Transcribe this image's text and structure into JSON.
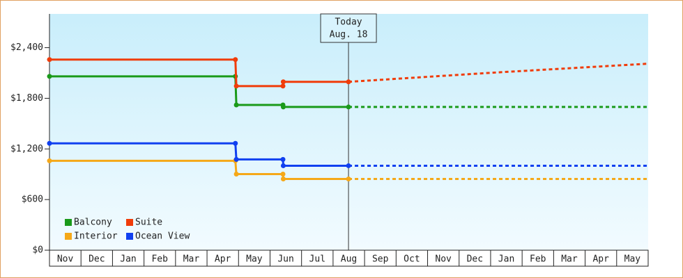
{
  "chart_data": {
    "type": "line",
    "categories": [
      "Nov",
      "Dec",
      "Jan",
      "Feb",
      "Mar",
      "Apr",
      "May",
      "Jun",
      "Jul",
      "Aug",
      "Sep",
      "Oct",
      "Nov",
      "Dec",
      "Jan",
      "Feb",
      "Mar",
      "Apr",
      "May"
    ],
    "x": [
      0,
      5.9,
      5.93,
      7.41,
      7.42,
      9.49
    ],
    "forecast_x": [
      9.49,
      14,
      19
    ],
    "xlim": [
      0,
      19
    ],
    "ylim": [
      0,
      2800
    ],
    "yticks": [
      {
        "value": 0,
        "label": "$0"
      },
      {
        "value": 600,
        "label": "$600"
      },
      {
        "value": 1200,
        "label": "$1,200"
      },
      {
        "value": 1800,
        "label": "$1,800"
      },
      {
        "value": 2400,
        "label": "$2,400"
      }
    ],
    "series": [
      {
        "name": "Balcony",
        "color": "#1a9a1a",
        "values": [
          2060,
          2060,
          1721,
          1721,
          1697,
          1697
        ],
        "forecast": [
          1697,
          1697,
          1697
        ]
      },
      {
        "name": "Suite",
        "color": "#f03c0a",
        "values": [
          2259,
          2259,
          1945,
          1945,
          1995,
          1995
        ],
        "forecast": [
          1995,
          2102,
          2210
        ]
      },
      {
        "name": "Interior",
        "color": "#f5a818",
        "values": [
          1059,
          1059,
          902,
          902,
          844,
          844
        ],
        "forecast": [
          844,
          844,
          844
        ]
      },
      {
        "name": "Ocean View",
        "color": "#1040f0",
        "values": [
          1266,
          1266,
          1076,
          1076,
          1001,
          1001
        ],
        "forecast": [
          1001,
          1001,
          1001
        ]
      }
    ],
    "annotation": {
      "text": [
        "Today",
        "Aug. 18"
      ],
      "x": 9.49
    }
  }
}
